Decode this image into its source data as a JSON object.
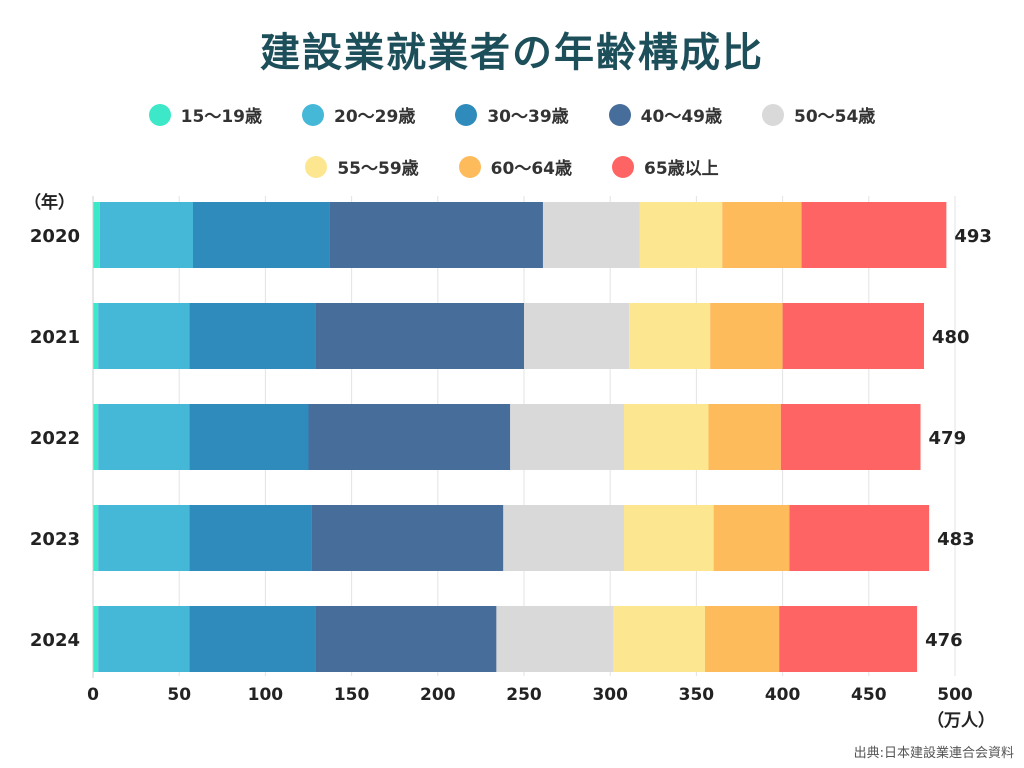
{
  "page": {
    "source": "出典:日本建設業連合会資料"
  },
  "chart_data": {
    "type": "bar",
    "orientation": "horizontal",
    "stacked": true,
    "title": "建設業就業者の年齢構成比",
    "ylabel": "（年）",
    "xlabel": "（万人）",
    "xlim": [
      0,
      500
    ],
    "xticks": [
      0,
      50,
      100,
      150,
      200,
      250,
      300,
      350,
      400,
      450,
      500
    ],
    "grid": true,
    "legend_position": "top",
    "categories": [
      "2020",
      "2021",
      "2022",
      "2023",
      "2024"
    ],
    "totals": [
      "493",
      "480",
      "479",
      "483",
      "476"
    ],
    "series": [
      {
        "name": "15〜19歳",
        "color": "#3de8c8",
        "values": [
          4,
          3,
          3,
          3,
          3
        ]
      },
      {
        "name": "20〜29歳",
        "color": "#45b8d8",
        "values": [
          54,
          53,
          53,
          53,
          53
        ]
      },
      {
        "name": "30〜39歳",
        "color": "#2e8bbb",
        "values": [
          79,
          73,
          69,
          71,
          73
        ]
      },
      {
        "name": "40〜49歳",
        "color": "#476d9b",
        "values": [
          124,
          121,
          117,
          111,
          105
        ]
      },
      {
        "name": "50〜54歳",
        "color": "#d9d9d9",
        "values": [
          56,
          61,
          66,
          70,
          68
        ]
      },
      {
        "name": "55〜59歳",
        "color": "#fce690",
        "values": [
          48,
          47,
          49,
          52,
          53
        ]
      },
      {
        "name": "60〜64歳",
        "color": "#fdbb5c",
        "values": [
          46,
          42,
          42,
          44,
          43
        ]
      },
      {
        "name": "65歳以上",
        "color": "#ff6464",
        "values": [
          84,
          82,
          81,
          81,
          80
        ]
      }
    ]
  }
}
